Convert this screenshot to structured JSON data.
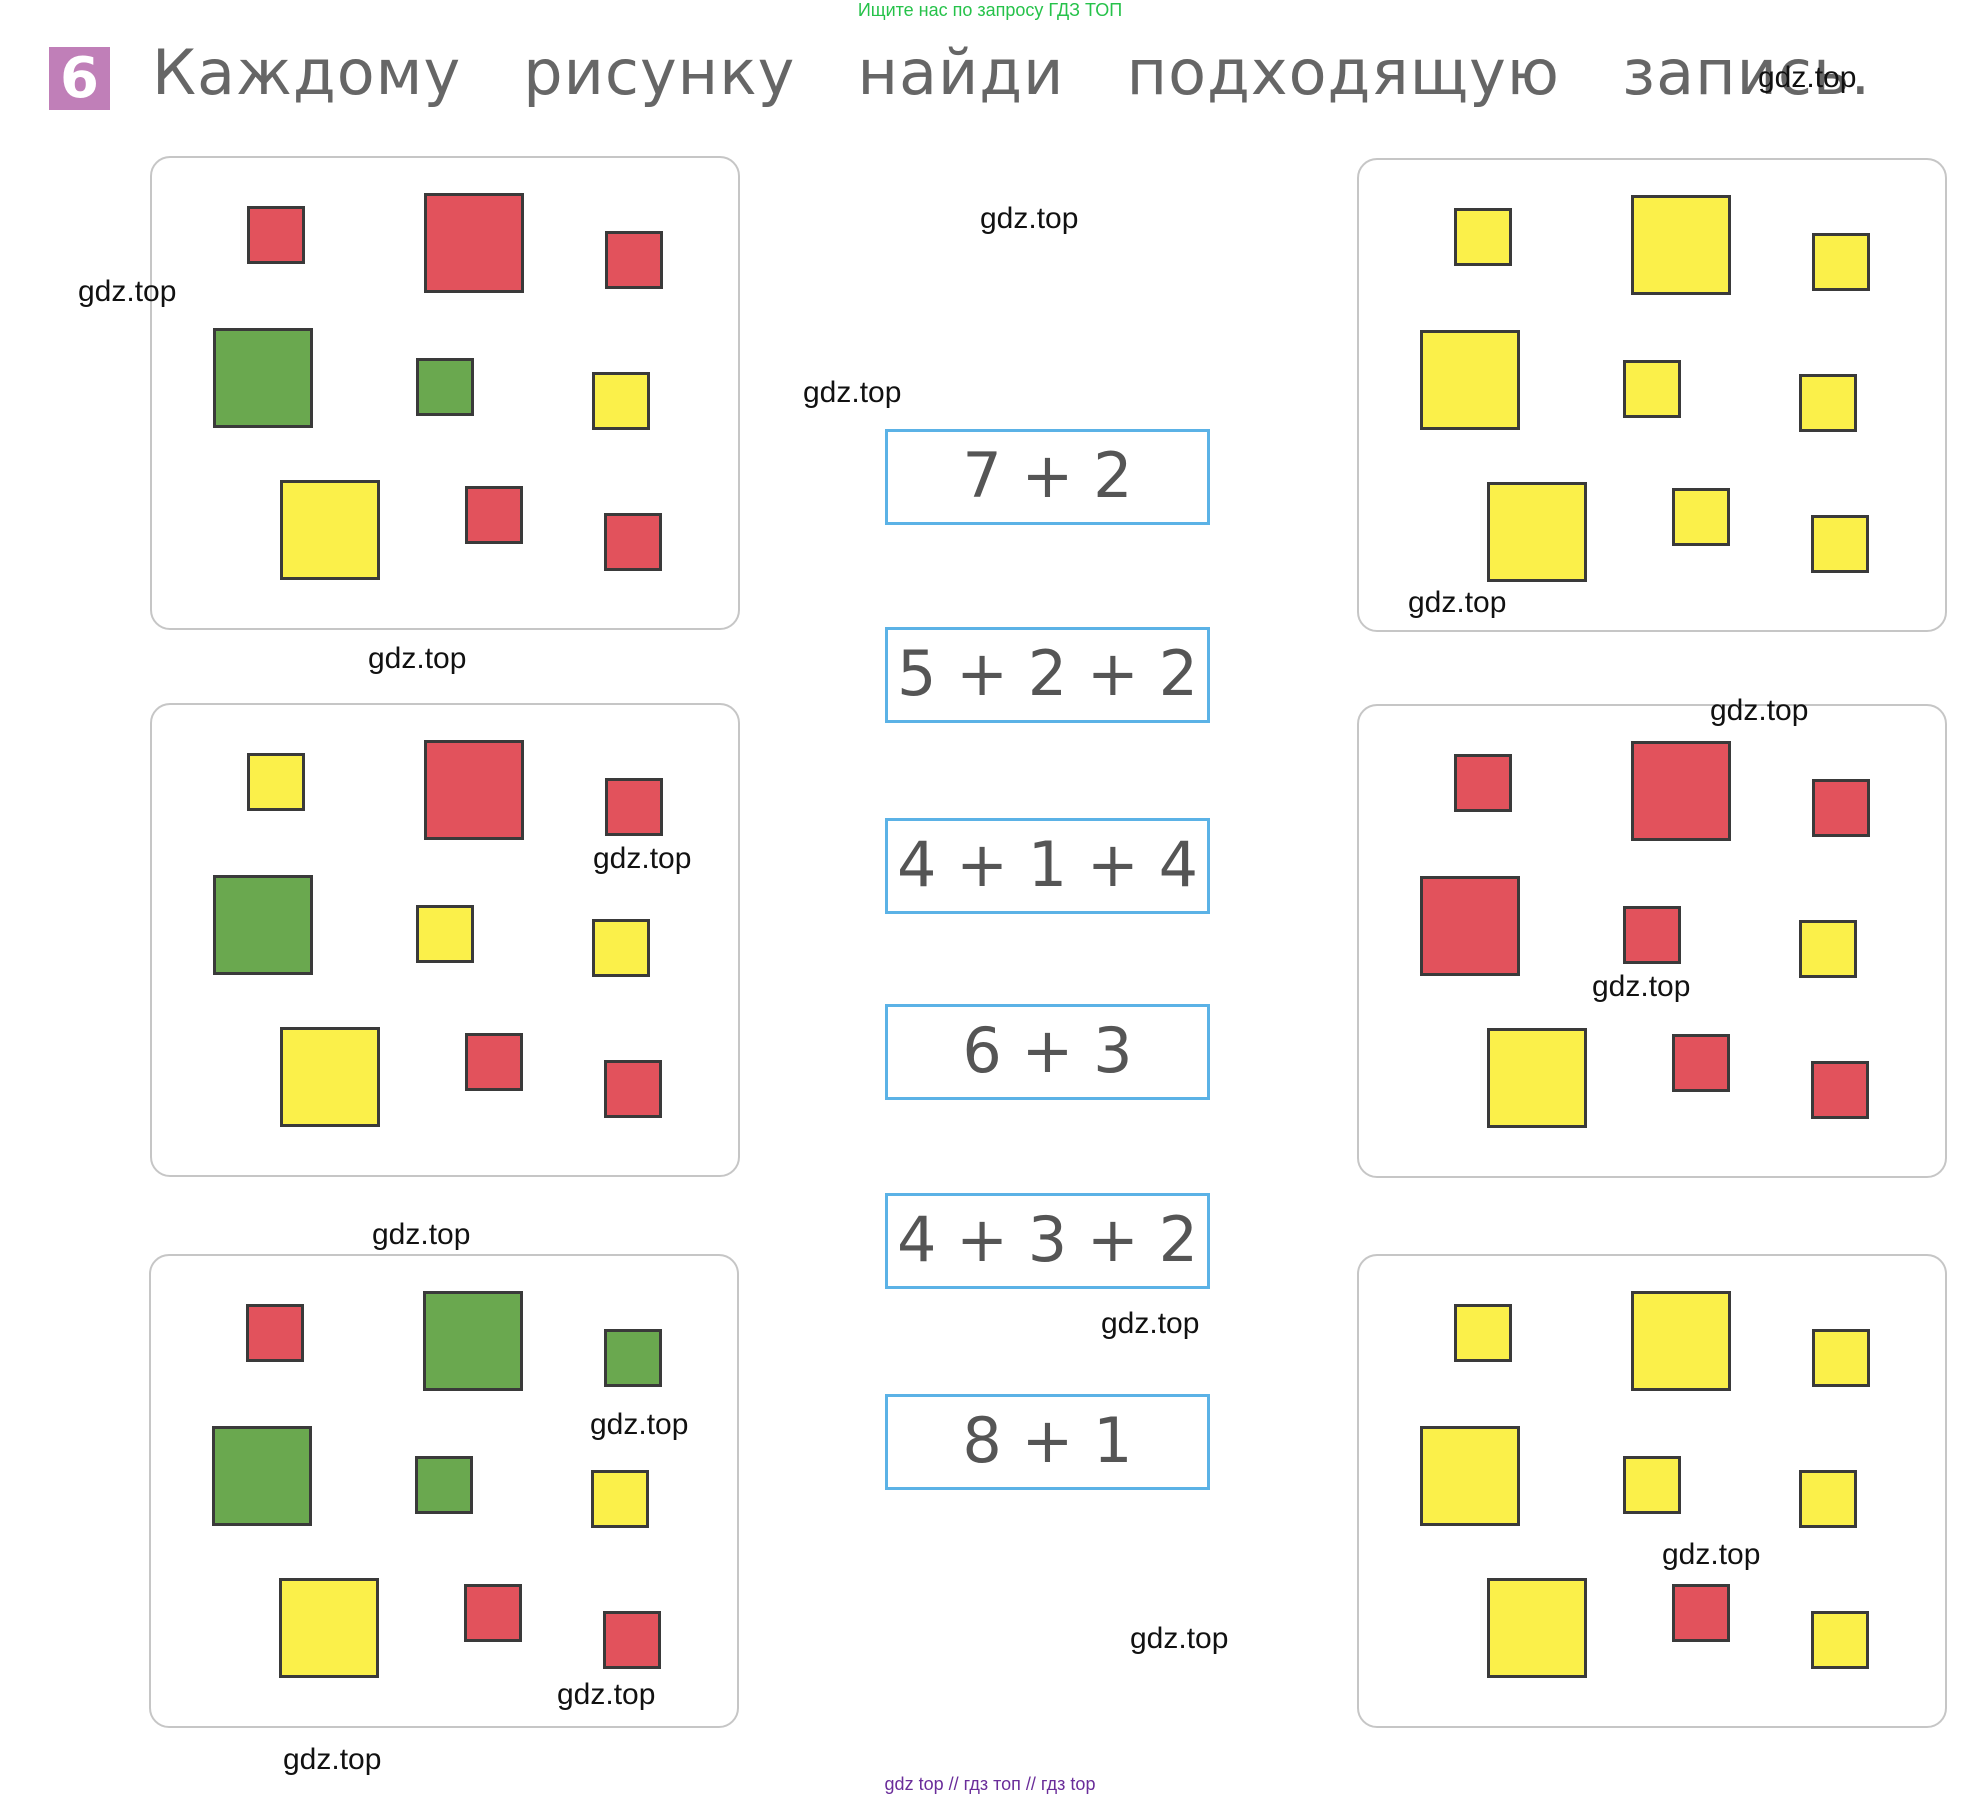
{
  "top_banner": "Ищите нас по запросу ГДЗ ТОП",
  "task": {
    "number": "6",
    "title": "Каждому   рисунку   найди   подходящую   запись."
  },
  "expressions": [
    "7 + 2",
    "5 + 2 + 2",
    "4 + 1 + 4",
    "6 + 3",
    "4 + 3 + 2",
    "8 + 1"
  ],
  "panels": [
    {
      "name": "left-top",
      "colors": [
        "red",
        "red",
        "red",
        "green",
        "green",
        "yellow",
        "yellow",
        "red",
        "red"
      ]
    },
    {
      "name": "left-middle",
      "colors": [
        "yellow",
        "red",
        "red",
        "green",
        "yellow",
        "yellow",
        "yellow",
        "red",
        "red"
      ]
    },
    {
      "name": "left-bottom",
      "colors": [
        "red",
        "green",
        "green",
        "green",
        "green",
        "yellow",
        "yellow",
        "red",
        "red"
      ]
    },
    {
      "name": "right-top",
      "colors": [
        "yellow",
        "yellow",
        "yellow",
        "yellow",
        "yellow",
        "yellow",
        "yellow",
        "yellow",
        "yellow"
      ]
    },
    {
      "name": "right-middle",
      "colors": [
        "red",
        "red",
        "red",
        "red",
        "red",
        "yellow",
        "yellow",
        "red",
        "red"
      ]
    },
    {
      "name": "right-bottom",
      "colors": [
        "yellow",
        "yellow",
        "yellow",
        "yellow",
        "yellow",
        "yellow",
        "yellow",
        "red",
        "yellow"
      ]
    }
  ],
  "watermark": "gdz.top",
  "footer": "gdz top  //  гдз топ  //  гдз top",
  "colors": {
    "red": "#e2525c",
    "green": "#6aa84f",
    "yellow": "#fbf04a",
    "badge": "#c07fb8",
    "expr_border": "#5bb2e6"
  }
}
